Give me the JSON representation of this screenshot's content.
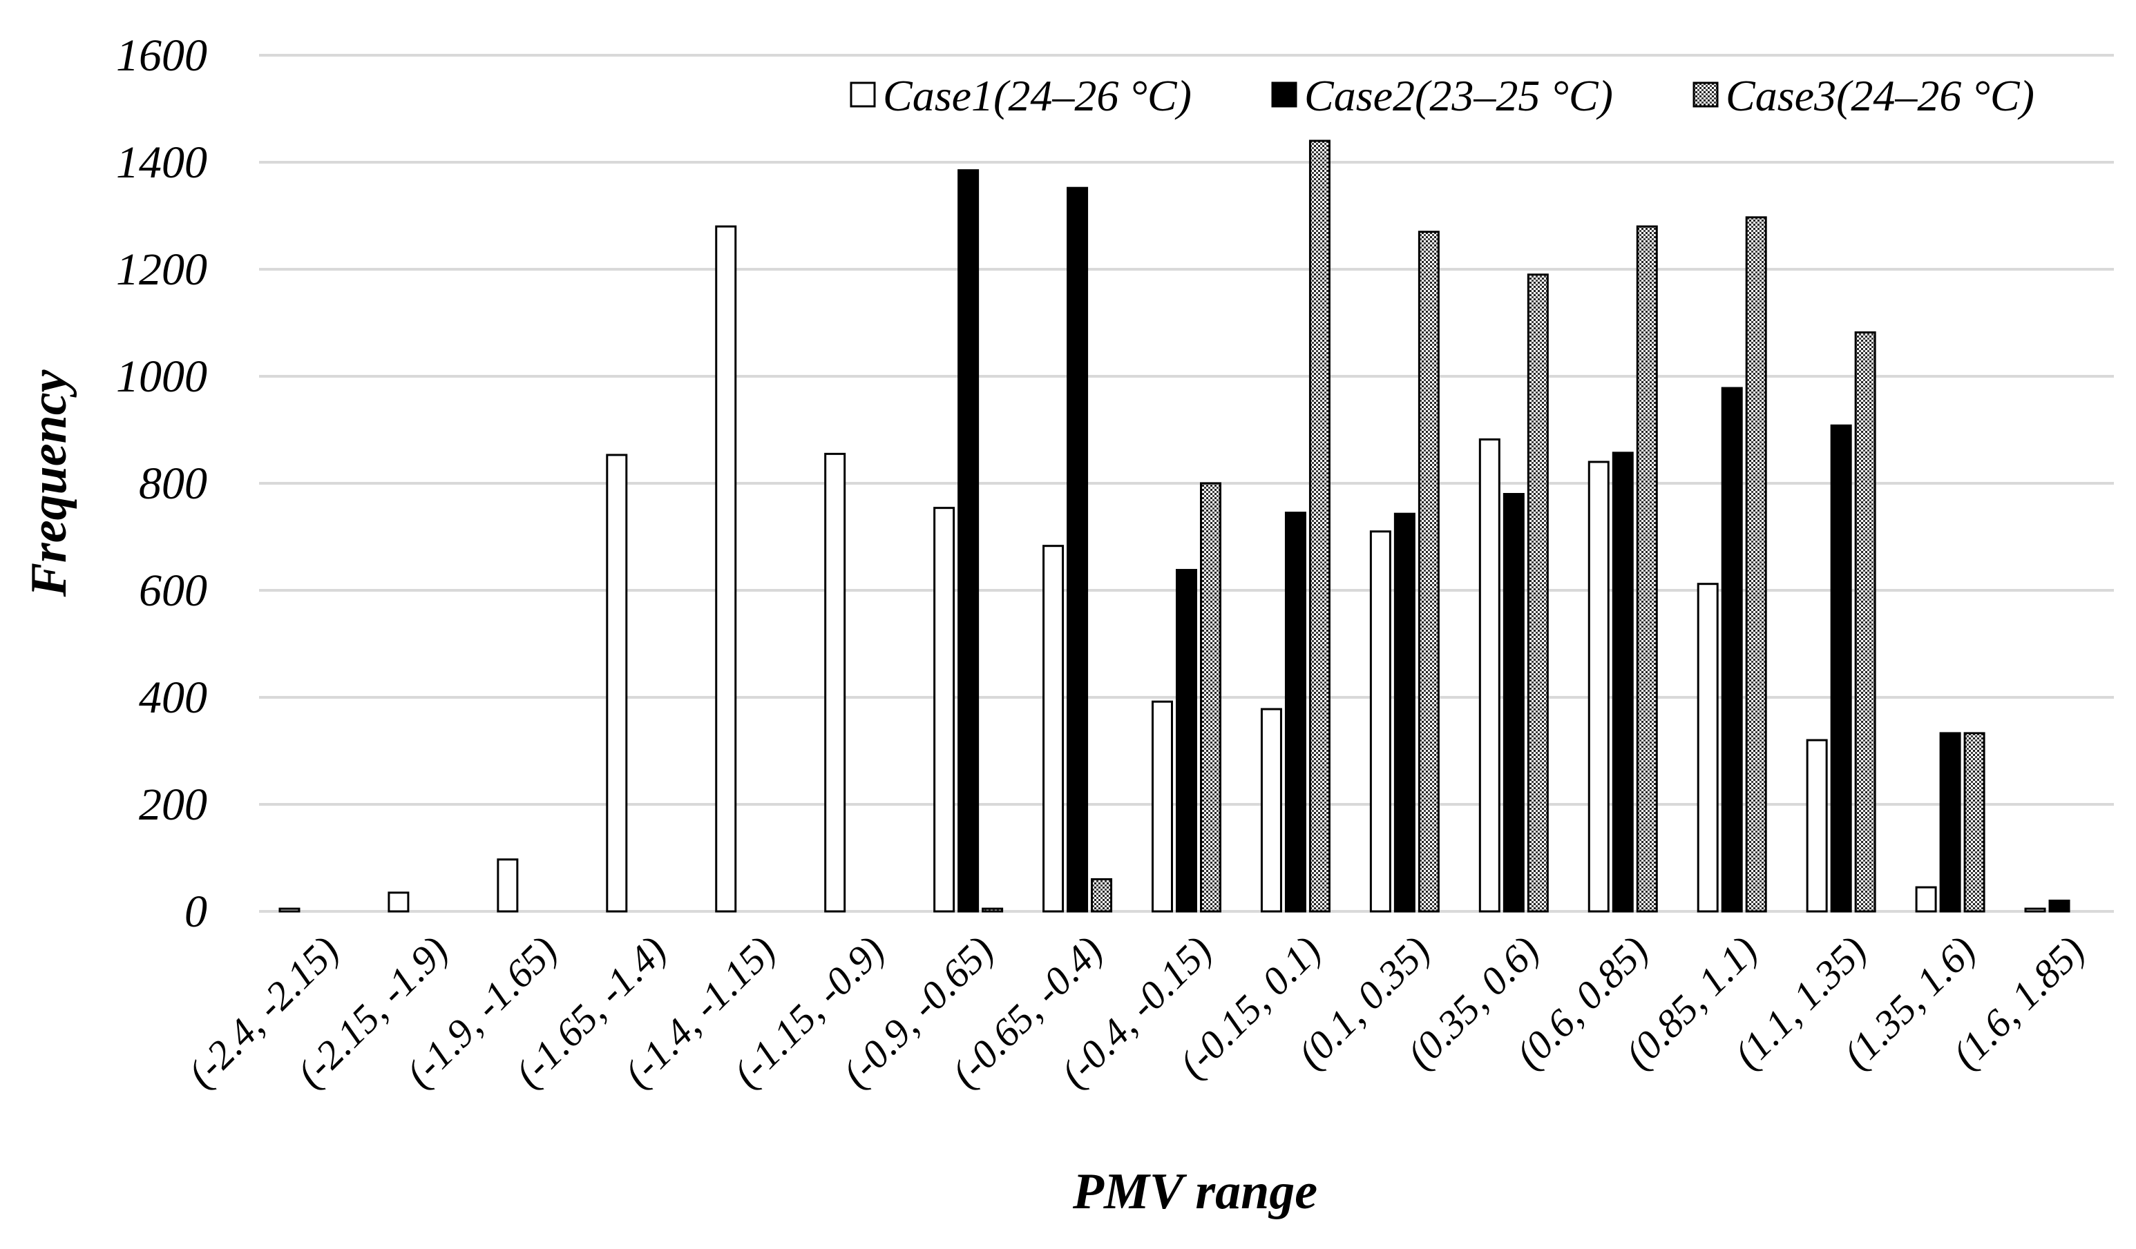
{
  "chart_data": {
    "type": "bar",
    "title": "",
    "xlabel": "PMV range",
    "ylabel": "Frequency",
    "ylim": [
      0,
      1600
    ],
    "yticks": [
      "0",
      "200",
      "400",
      "600",
      "800",
      "1000",
      "1200",
      "1400",
      "1600"
    ],
    "grid": true,
    "legend_position": "top-right",
    "categories": [
      "(-2.4, -2.15)",
      "(-2.15, -1.9)",
      "(-1.9, -1.65)",
      "(-1.65, -1.4)",
      "(-1.4, -1.15)",
      "(-1.15, -0.9)",
      "(-0.9, -0.65)",
      "(-0.65, -0.4)",
      "(-0.4, -0.15)",
      "(-0.15, 0.1)",
      "(0.1, 0.35)",
      "(0.35, 0.6)",
      "(0.6, 0.85)",
      "(0.85, 1.1)",
      "(1.1, 1.35)",
      "(1.35, 1.6)",
      "(1.6, 1.85)"
    ],
    "series": [
      {
        "name": "Case1(24–26 °C)",
        "style": "hollow",
        "values": [
          5,
          35,
          97,
          853,
          1280,
          855,
          754,
          683,
          392,
          378,
          710,
          882,
          840,
          612,
          320,
          45,
          5
        ]
      },
      {
        "name": "Case2(23–25 °C)",
        "style": "solid",
        "values": [
          0,
          0,
          0,
          0,
          0,
          0,
          1385,
          1352,
          638,
          745,
          743,
          780,
          857,
          978,
          908,
          333,
          20
        ]
      },
      {
        "name": "Case3(24–26 °C)",
        "style": "dotted",
        "values": [
          0,
          0,
          0,
          0,
          0,
          0,
          5,
          60,
          800,
          1440,
          1270,
          1190,
          1280,
          1297,
          1082,
          333,
          0
        ]
      }
    ]
  }
}
